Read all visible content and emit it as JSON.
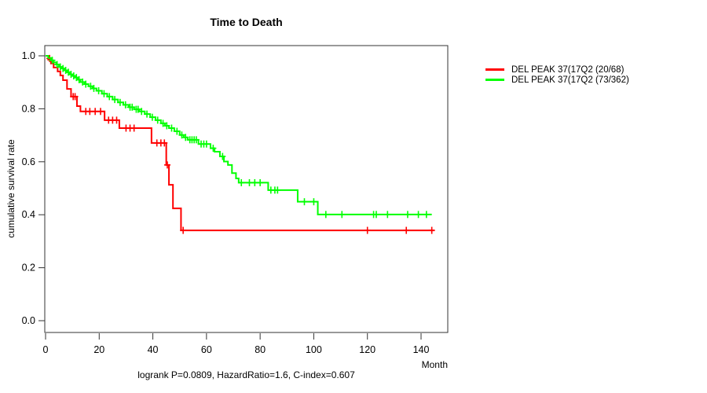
{
  "chart_data": {
    "type": "line",
    "subtype": "kaplan-meier-step",
    "title": "Time to Death",
    "xlabel": "Month",
    "ylabel": "cumulative survival rate",
    "footnote": "logrank P=0.0809, HazardRatio=1.6, C-index=0.607",
    "xlim": [
      0,
      150
    ],
    "ylim": [
      0,
      1
    ],
    "xticks": [
      0,
      20,
      40,
      60,
      80,
      100,
      120,
      140
    ],
    "yticks": [
      "0.0",
      "0.2",
      "0.4",
      "0.6",
      "0.8",
      "1.0"
    ],
    "grid": false,
    "legend_position": "right-outside",
    "legend": [
      {
        "label": "DEL PEAK 37(17Q2 (20/68)",
        "color": "#ff0000"
      },
      {
        "label": "DEL PEAK 37(17Q2 (73/362)",
        "color": "#00ff00"
      }
    ],
    "series": [
      {
        "name": "DEL PEAK 37(17Q2 (20/68)",
        "color": "#ff0000",
        "end_month": 145,
        "steps": [
          [
            0,
            1.0
          ],
          [
            1,
            0.985
          ],
          [
            2,
            0.971
          ],
          [
            3,
            0.956
          ],
          [
            4.5,
            0.941
          ],
          [
            5.5,
            0.926
          ],
          [
            6.5,
            0.908
          ],
          [
            8,
            0.875
          ],
          [
            9.5,
            0.846
          ],
          [
            11.7,
            0.81
          ],
          [
            13,
            0.79
          ],
          [
            22,
            0.757
          ],
          [
            27.5,
            0.727
          ],
          [
            39.5,
            0.671
          ],
          [
            45,
            0.588
          ],
          [
            46,
            0.513
          ],
          [
            47.5,
            0.424
          ],
          [
            50.5,
            0.341
          ]
        ],
        "censors": [
          [
            1.5,
            0.99
          ],
          [
            10.3,
            0.846
          ],
          [
            11,
            0.846
          ],
          [
            15,
            0.79
          ],
          [
            16.5,
            0.79
          ],
          [
            18.5,
            0.79
          ],
          [
            20.5,
            0.79
          ],
          [
            23.5,
            0.757
          ],
          [
            25,
            0.757
          ],
          [
            26.5,
            0.757
          ],
          [
            30,
            0.727
          ],
          [
            31.5,
            0.727
          ],
          [
            33,
            0.727
          ],
          [
            41.5,
            0.671
          ],
          [
            43,
            0.671
          ],
          [
            44.3,
            0.671
          ],
          [
            45.4,
            0.588
          ],
          [
            51.3,
            0.341
          ],
          [
            120,
            0.341
          ],
          [
            134.5,
            0.341
          ],
          [
            144,
            0.341
          ]
        ]
      },
      {
        "name": "DEL PEAK 37(17Q2 (73/362)",
        "color": "#00ff00",
        "end_month": 144,
        "steps": [
          [
            0,
            1.0
          ],
          [
            1,
            0.992
          ],
          [
            2,
            0.983
          ],
          [
            3,
            0.975
          ],
          [
            4,
            0.967
          ],
          [
            5,
            0.958
          ],
          [
            6,
            0.952
          ],
          [
            7,
            0.945
          ],
          [
            8,
            0.938
          ],
          [
            9,
            0.93
          ],
          [
            10,
            0.924
          ],
          [
            11,
            0.918
          ],
          [
            12,
            0.91
          ],
          [
            13,
            0.901
          ],
          [
            14.5,
            0.893
          ],
          [
            16,
            0.885
          ],
          [
            17.5,
            0.877
          ],
          [
            19,
            0.868
          ],
          [
            21,
            0.857
          ],
          [
            23,
            0.846
          ],
          [
            25,
            0.835
          ],
          [
            27,
            0.824
          ],
          [
            29,
            0.815
          ],
          [
            31,
            0.806
          ],
          [
            33,
            0.798
          ],
          [
            35,
            0.79
          ],
          [
            37,
            0.78
          ],
          [
            39,
            0.768
          ],
          [
            41,
            0.757
          ],
          [
            43,
            0.745
          ],
          [
            44.5,
            0.736
          ],
          [
            46,
            0.727
          ],
          [
            48,
            0.715
          ],
          [
            50,
            0.701
          ],
          [
            51.5,
            0.692
          ],
          [
            53,
            0.683
          ],
          [
            57,
            0.667
          ],
          [
            61.5,
            0.651
          ],
          [
            63,
            0.638
          ],
          [
            65,
            0.62
          ],
          [
            66.5,
            0.601
          ],
          [
            68,
            0.588
          ],
          [
            69.5,
            0.557
          ],
          [
            71,
            0.537
          ],
          [
            72,
            0.521
          ],
          [
            83,
            0.493
          ],
          [
            94,
            0.449
          ],
          [
            101.5,
            0.401
          ]
        ],
        "censors": [
          [
            2.5,
            0.983
          ],
          [
            4.3,
            0.967
          ],
          [
            5.5,
            0.958
          ],
          [
            6.5,
            0.952
          ],
          [
            7.5,
            0.945
          ],
          [
            8.5,
            0.938
          ],
          [
            9.5,
            0.93
          ],
          [
            10.5,
            0.924
          ],
          [
            11.5,
            0.918
          ],
          [
            12.5,
            0.91
          ],
          [
            13.8,
            0.901
          ],
          [
            15,
            0.893
          ],
          [
            16.8,
            0.885
          ],
          [
            18,
            0.877
          ],
          [
            19.8,
            0.868
          ],
          [
            21.8,
            0.857
          ],
          [
            23.8,
            0.846
          ],
          [
            25.8,
            0.835
          ],
          [
            27.8,
            0.824
          ],
          [
            29.8,
            0.815
          ],
          [
            31.5,
            0.806
          ],
          [
            32.3,
            0.806
          ],
          [
            33.8,
            0.798
          ],
          [
            34.5,
            0.798
          ],
          [
            35.8,
            0.79
          ],
          [
            37.8,
            0.78
          ],
          [
            39.8,
            0.768
          ],
          [
            41.8,
            0.757
          ],
          [
            43.8,
            0.745
          ],
          [
            45.2,
            0.736
          ],
          [
            47,
            0.727
          ],
          [
            49,
            0.715
          ],
          [
            50.8,
            0.701
          ],
          [
            52.2,
            0.692
          ],
          [
            53.8,
            0.683
          ],
          [
            54.6,
            0.683
          ],
          [
            55.4,
            0.683
          ],
          [
            56.2,
            0.683
          ],
          [
            58,
            0.667
          ],
          [
            59,
            0.667
          ],
          [
            60,
            0.667
          ],
          [
            62.5,
            0.651
          ],
          [
            66,
            0.62
          ],
          [
            73,
            0.521
          ],
          [
            76,
            0.521
          ],
          [
            78,
            0.521
          ],
          [
            80,
            0.521
          ],
          [
            84,
            0.493
          ],
          [
            85.5,
            0.493
          ],
          [
            86.5,
            0.493
          ],
          [
            96.5,
            0.449
          ],
          [
            100,
            0.449
          ],
          [
            104.5,
            0.401
          ],
          [
            110.5,
            0.401
          ],
          [
            122.3,
            0.401
          ],
          [
            123.3,
            0.401
          ],
          [
            127.5,
            0.401
          ],
          [
            135,
            0.401
          ],
          [
            139,
            0.401
          ],
          [
            142,
            0.401
          ]
        ]
      }
    ]
  }
}
